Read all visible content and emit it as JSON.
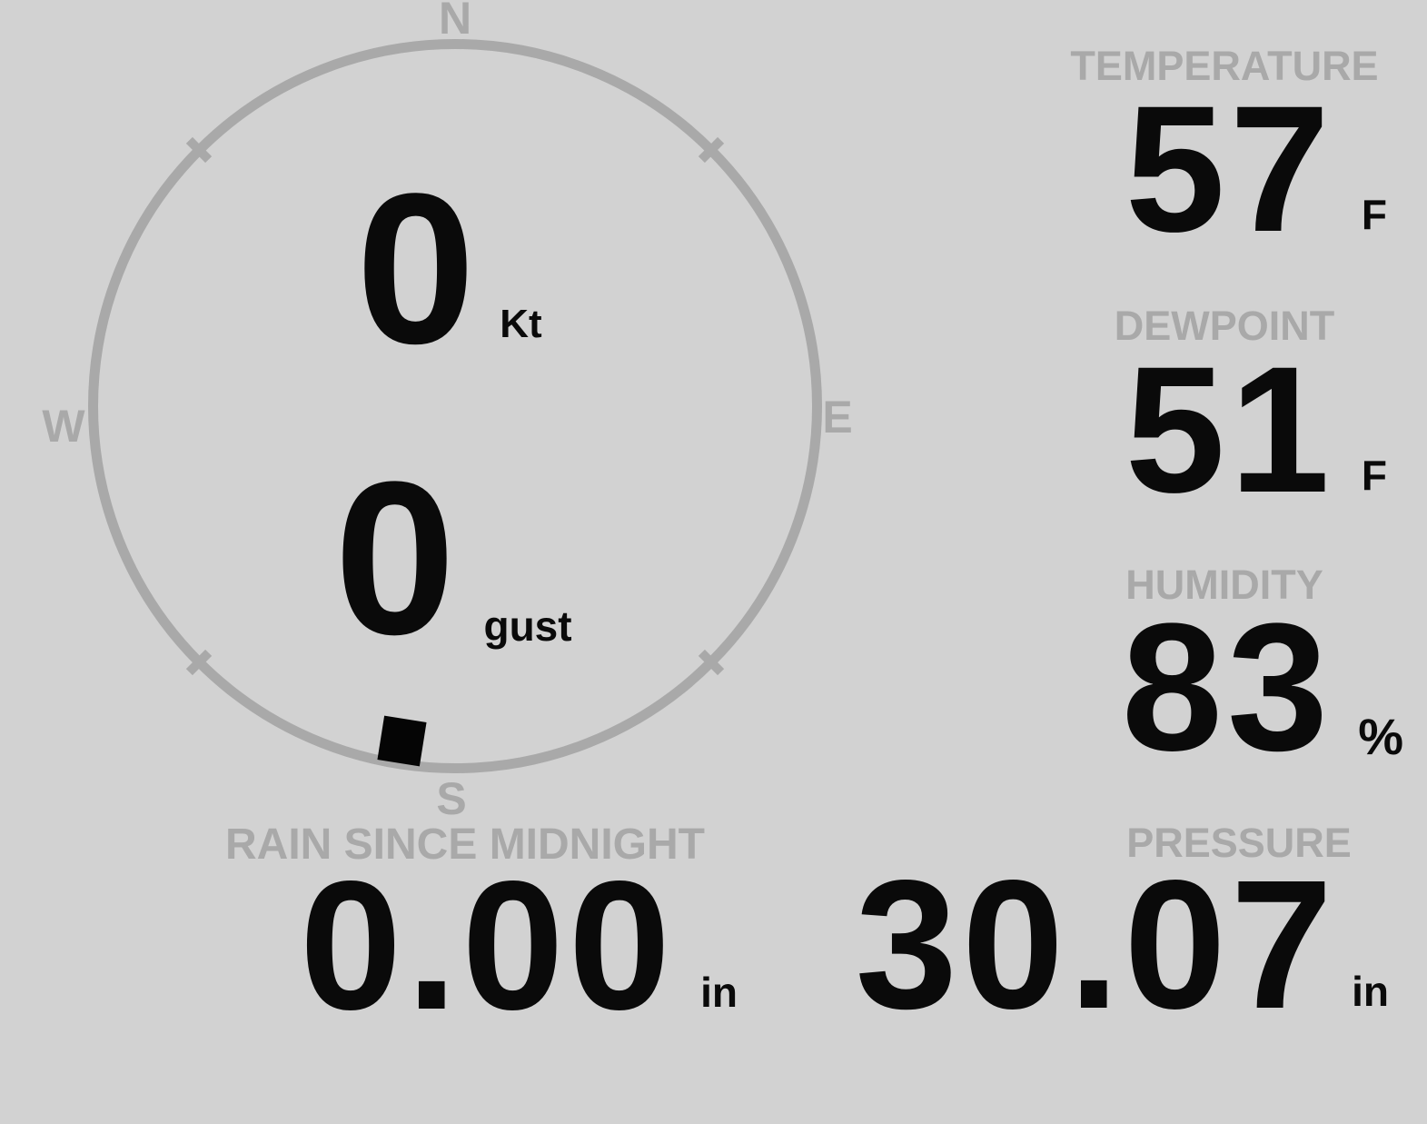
{
  "compass": {
    "cardinals": {
      "north": "N",
      "east": "E",
      "south": "S",
      "west": "W"
    },
    "wind_speed": {
      "value": "0",
      "unit": "Kt"
    },
    "wind_gust": {
      "value": "0",
      "unit": "gust"
    },
    "wind_direction_degrees": 189
  },
  "metrics": {
    "temperature": {
      "label": "TEMPERATURE",
      "value": "57",
      "unit": "F"
    },
    "dewpoint": {
      "label": "DEWPOINT",
      "value": "51",
      "unit": "F"
    },
    "humidity": {
      "label": "HUMIDITY",
      "value": "83",
      "unit": "%"
    },
    "rain_since_midnight": {
      "label": "RAIN SINCE MIDNIGHT",
      "value": "0.00",
      "unit": "in"
    },
    "pressure": {
      "label": "PRESSURE",
      "value": "30.07",
      "unit": "in"
    }
  },
  "colors": {
    "background": "#d2d2d2",
    "dim_gray": "#a9a9a9",
    "value_black": "#0a0a0a"
  }
}
